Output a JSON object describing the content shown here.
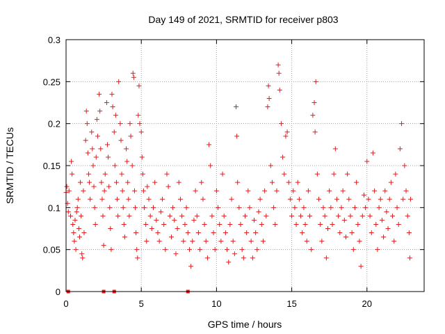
{
  "chart_data": {
    "type": "scatter",
    "title": "Day 149 of 2021, SRMTID for receiver p803",
    "xlabel": "GPS time / hours",
    "ylabel": "SRMTID / TECUs",
    "xlim": [
      0,
      23.8
    ],
    "ylim": [
      0,
      0.3
    ],
    "grid": true,
    "marker": "+",
    "xticks": [
      0,
      5,
      10,
      15,
      20
    ],
    "xtick_labels": [
      "0",
      "5",
      "10",
      "15",
      "20"
    ],
    "yticks": [
      0,
      0.05,
      0.1,
      0.15,
      0.2,
      0.25,
      0.3
    ],
    "ytick_labels": [
      "0",
      "0.05",
      "0.1",
      "0.15",
      "0.2",
      "0.25",
      "0.3"
    ],
    "series": [
      {
        "name": "SRMTID",
        "color": "#e41a1c",
        "points": [
          [
            0.0,
            0.118
          ],
          [
            0.05,
            0.125
          ],
          [
            0.1,
            0.105
          ],
          [
            0.15,
            0.095
          ],
          [
            0.2,
            0.12
          ],
          [
            0.3,
            0.09
          ],
          [
            0.35,
            0.155
          ],
          [
            0.4,
            0.14
          ],
          [
            0.45,
            0.08
          ],
          [
            0.5,
            0.07
          ],
          [
            0.55,
            0.06
          ],
          [
            0.6,
            0.085
          ],
          [
            0.65,
            0.05
          ],
          [
            0.7,
            0.095
          ],
          [
            0.75,
            0.1
          ],
          [
            0.8,
            0.11
          ],
          [
            0.85,
            0.075
          ],
          [
            0.9,
            0.065
          ],
          [
            0.95,
            0.13
          ],
          [
            1.0,
            0.09
          ],
          [
            1.05,
            0.045
          ],
          [
            1.1,
            0.04
          ],
          [
            1.15,
            0.12
          ],
          [
            1.2,
            0.07
          ],
          [
            1.3,
            0.18
          ],
          [
            1.35,
            0.215
          ],
          [
            1.4,
            0.2
          ],
          [
            1.45,
            0.165
          ],
          [
            1.5,
            0.14
          ],
          [
            1.55,
            0.13
          ],
          [
            1.6,
            0.11
          ],
          [
            1.7,
            0.19
          ],
          [
            1.75,
            0.17
          ],
          [
            1.8,
            0.15
          ],
          [
            1.85,
            0.125
          ],
          [
            1.9,
            0.1
          ],
          [
            1.95,
            0.08
          ],
          [
            2.0,
            0.16
          ],
          [
            2.05,
            0.205
          ],
          [
            2.1,
            0.185
          ],
          [
            2.2,
            0.235
          ],
          [
            2.25,
            0.215
          ],
          [
            2.3,
            0.17
          ],
          [
            2.35,
            0.13
          ],
          [
            2.4,
            0.11
          ],
          [
            2.45,
            0.09
          ],
          [
            2.5,
            0.055
          ],
          [
            2.55,
            0.12
          ],
          [
            2.6,
            0.14
          ],
          [
            2.7,
            0.225
          ],
          [
            2.75,
            0.175
          ],
          [
            2.8,
            0.16
          ],
          [
            2.85,
            0.125
          ],
          [
            2.9,
            0.1
          ],
          [
            2.95,
            0.075
          ],
          [
            3.0,
            0.05
          ],
          [
            3.05,
            0.235
          ],
          [
            3.1,
            0.22
          ],
          [
            3.2,
            0.19
          ],
          [
            3.25,
            0.15
          ],
          [
            3.3,
            0.21
          ],
          [
            3.35,
            0.13
          ],
          [
            3.4,
            0.11
          ],
          [
            3.45,
            0.09
          ],
          [
            3.5,
            0.25
          ],
          [
            3.6,
            0.2
          ],
          [
            3.65,
            0.18
          ],
          [
            3.7,
            0.14
          ],
          [
            3.75,
            0.12
          ],
          [
            3.8,
            0.1
          ],
          [
            3.85,
            0.08
          ],
          [
            3.9,
            0.065
          ],
          [
            4.0,
            0.17
          ],
          [
            4.05,
            0.155
          ],
          [
            4.1,
            0.13
          ],
          [
            4.15,
            0.11
          ],
          [
            4.2,
            0.09
          ],
          [
            4.25,
            0.2
          ],
          [
            4.3,
            0.185
          ],
          [
            4.4,
            0.15
          ],
          [
            4.45,
            0.26
          ],
          [
            4.5,
            0.255
          ],
          [
            4.55,
            0.12
          ],
          [
            4.6,
            0.1
          ],
          [
            4.65,
            0.07
          ],
          [
            4.7,
            0.05
          ],
          [
            4.75,
            0.04
          ],
          [
            4.8,
            0.21
          ],
          [
            4.85,
            0.245
          ],
          [
            4.9,
            0.2
          ],
          [
            5.0,
            0.19
          ],
          [
            5.05,
            0.16
          ],
          [
            5.1,
            0.14
          ],
          [
            5.15,
            0.12
          ],
          [
            5.2,
            0.1
          ],
          [
            5.3,
            0.08
          ],
          [
            5.35,
            0.06
          ],
          [
            5.4,
            0.125
          ],
          [
            5.5,
            0.11
          ],
          [
            5.6,
            0.09
          ],
          [
            5.7,
            0.075
          ],
          [
            5.8,
            0.1
          ],
          [
            5.9,
            0.13
          ],
          [
            6.0,
            0.085
          ],
          [
            6.1,
            0.07
          ],
          [
            6.2,
            0.06
          ],
          [
            6.3,
            0.095
          ],
          [
            6.4,
            0.11
          ],
          [
            6.5,
            0.08
          ],
          [
            6.6,
            0.05
          ],
          [
            6.7,
            0.14
          ],
          [
            6.8,
            0.125
          ],
          [
            6.9,
            0.09
          ],
          [
            7.0,
            0.065
          ],
          [
            7.1,
            0.1
          ],
          [
            7.2,
            0.085
          ],
          [
            7.3,
            0.045
          ],
          [
            7.4,
            0.075
          ],
          [
            7.5,
            0.13
          ],
          [
            7.6,
            0.11
          ],
          [
            7.7,
            0.09
          ],
          [
            7.8,
            0.06
          ],
          [
            7.9,
            0.08
          ],
          [
            8.0,
            0.1
          ],
          [
            8.1,
            0.07
          ],
          [
            8.2,
            0.05
          ],
          [
            8.3,
            0.03
          ],
          [
            8.4,
            0.06
          ],
          [
            8.5,
            0.085
          ],
          [
            8.6,
            0.12
          ],
          [
            8.7,
            0.09
          ],
          [
            8.8,
            0.07
          ],
          [
            8.9,
            0.05
          ],
          [
            9.0,
            0.13
          ],
          [
            9.1,
            0.11
          ],
          [
            9.2,
            0.08
          ],
          [
            9.3,
            0.06
          ],
          [
            9.4,
            0.04
          ],
          [
            9.5,
            0.175
          ],
          [
            9.6,
            0.15
          ],
          [
            9.7,
            0.09
          ],
          [
            9.8,
            0.07
          ],
          [
            9.9,
            0.05
          ],
          [
            10.0,
            0.12
          ],
          [
            10.1,
            0.1
          ],
          [
            10.2,
            0.08
          ],
          [
            10.3,
            0.06
          ],
          [
            10.4,
            0.14
          ],
          [
            10.5,
            0.09
          ],
          [
            10.6,
            0.07
          ],
          [
            10.7,
            0.05
          ],
          [
            10.8,
            0.035
          ],
          [
            10.9,
            0.08
          ],
          [
            11.0,
            0.11
          ],
          [
            11.1,
            0.06
          ],
          [
            11.2,
            0.045
          ],
          [
            11.3,
            0.22
          ],
          [
            11.35,
            0.185
          ],
          [
            11.4,
            0.13
          ],
          [
            11.5,
            0.1
          ],
          [
            11.6,
            0.08
          ],
          [
            11.7,
            0.05
          ],
          [
            11.8,
            0.04
          ],
          [
            11.9,
            0.09
          ],
          [
            12.0,
            0.07
          ],
          [
            12.1,
            0.12
          ],
          [
            12.2,
            0.1
          ],
          [
            12.3,
            0.06
          ],
          [
            12.4,
            0.04
          ],
          [
            12.5,
            0.085
          ],
          [
            12.6,
            0.07
          ],
          [
            12.7,
            0.05
          ],
          [
            12.8,
            0.095
          ],
          [
            12.9,
            0.11
          ],
          [
            13.0,
            0.08
          ],
          [
            13.1,
            0.06
          ],
          [
            13.2,
            0.12
          ],
          [
            13.3,
            0.09
          ],
          [
            13.4,
            0.22
          ],
          [
            13.45,
            0.245
          ],
          [
            13.5,
            0.23
          ],
          [
            13.6,
            0.15
          ],
          [
            13.7,
            0.13
          ],
          [
            13.8,
            0.1
          ],
          [
            13.9,
            0.08
          ],
          [
            14.0,
            0.12
          ],
          [
            14.1,
            0.27
          ],
          [
            14.15,
            0.26
          ],
          [
            14.2,
            0.24
          ],
          [
            14.3,
            0.2
          ],
          [
            14.4,
            0.16
          ],
          [
            14.5,
            0.14
          ],
          [
            14.6,
            0.185
          ],
          [
            14.7,
            0.19
          ],
          [
            14.8,
            0.13
          ],
          [
            14.9,
            0.11
          ],
          [
            15.0,
            0.09
          ],
          [
            15.1,
            0.12
          ],
          [
            15.2,
            0.1
          ],
          [
            15.3,
            0.08
          ],
          [
            15.4,
            0.13
          ],
          [
            15.5,
            0.11
          ],
          [
            15.6,
            0.09
          ],
          [
            15.7,
            0.07
          ],
          [
            15.8,
            0.1
          ],
          [
            15.9,
            0.08
          ],
          [
            16.0,
            0.06
          ],
          [
            16.1,
            0.12
          ],
          [
            16.2,
            0.09
          ],
          [
            16.3,
            0.05
          ],
          [
            16.4,
            0.21
          ],
          [
            16.5,
            0.225
          ],
          [
            16.55,
            0.19
          ],
          [
            16.6,
            0.25
          ],
          [
            16.7,
            0.14
          ],
          [
            16.8,
            0.11
          ],
          [
            16.9,
            0.08
          ],
          [
            17.0,
            0.06
          ],
          [
            17.1,
            0.1
          ],
          [
            17.2,
            0.09
          ],
          [
            17.3,
            0.04
          ],
          [
            17.4,
            0.075
          ],
          [
            17.5,
            0.12
          ],
          [
            17.6,
            0.1
          ],
          [
            17.7,
            0.08
          ],
          [
            17.8,
            0.14
          ],
          [
            17.9,
            0.17
          ],
          [
            18.0,
            0.11
          ],
          [
            18.1,
            0.09
          ],
          [
            18.2,
            0.07
          ],
          [
            18.3,
            0.1
          ],
          [
            18.4,
            0.12
          ],
          [
            18.5,
            0.085
          ],
          [
            18.6,
            0.065
          ],
          [
            18.7,
            0.14
          ],
          [
            18.8,
            0.11
          ],
          [
            18.9,
            0.09
          ],
          [
            19.0,
            0.07
          ],
          [
            19.1,
            0.05
          ],
          [
            19.2,
            0.1
          ],
          [
            19.3,
            0.13
          ],
          [
            19.4,
            0.08
          ],
          [
            19.5,
            0.06
          ],
          [
            19.6,
            0.03
          ],
          [
            19.7,
            0.09
          ],
          [
            19.8,
            0.115
          ],
          [
            19.9,
            0.1
          ],
          [
            20.0,
            0.155
          ],
          [
            20.1,
            0.11
          ],
          [
            20.2,
            0.09
          ],
          [
            20.3,
            0.07
          ],
          [
            20.4,
            0.165
          ],
          [
            20.5,
            0.12
          ],
          [
            20.6,
            0.08
          ],
          [
            20.7,
            0.05
          ],
          [
            20.8,
            0.1
          ],
          [
            20.9,
            0.11
          ],
          [
            21.0,
            0.085
          ],
          [
            21.1,
            0.065
          ],
          [
            21.2,
            0.12
          ],
          [
            21.3,
            0.095
          ],
          [
            21.4,
            0.075
          ],
          [
            21.5,
            0.11
          ],
          [
            21.6,
            0.13
          ],
          [
            21.7,
            0.09
          ],
          [
            21.8,
            0.06
          ],
          [
            21.9,
            0.14
          ],
          [
            22.0,
            0.1
          ],
          [
            22.1,
            0.08
          ],
          [
            22.2,
            0.17
          ],
          [
            22.3,
            0.2
          ],
          [
            22.4,
            0.11
          ],
          [
            22.5,
            0.15
          ],
          [
            22.6,
            0.12
          ],
          [
            22.7,
            0.09
          ],
          [
            22.8,
            0.07
          ],
          [
            22.85,
            0.04
          ],
          [
            22.9,
            0.11
          ]
        ]
      }
    ],
    "baseline_markers": [
      0.15,
      2.5,
      3.2,
      8.1
    ]
  }
}
